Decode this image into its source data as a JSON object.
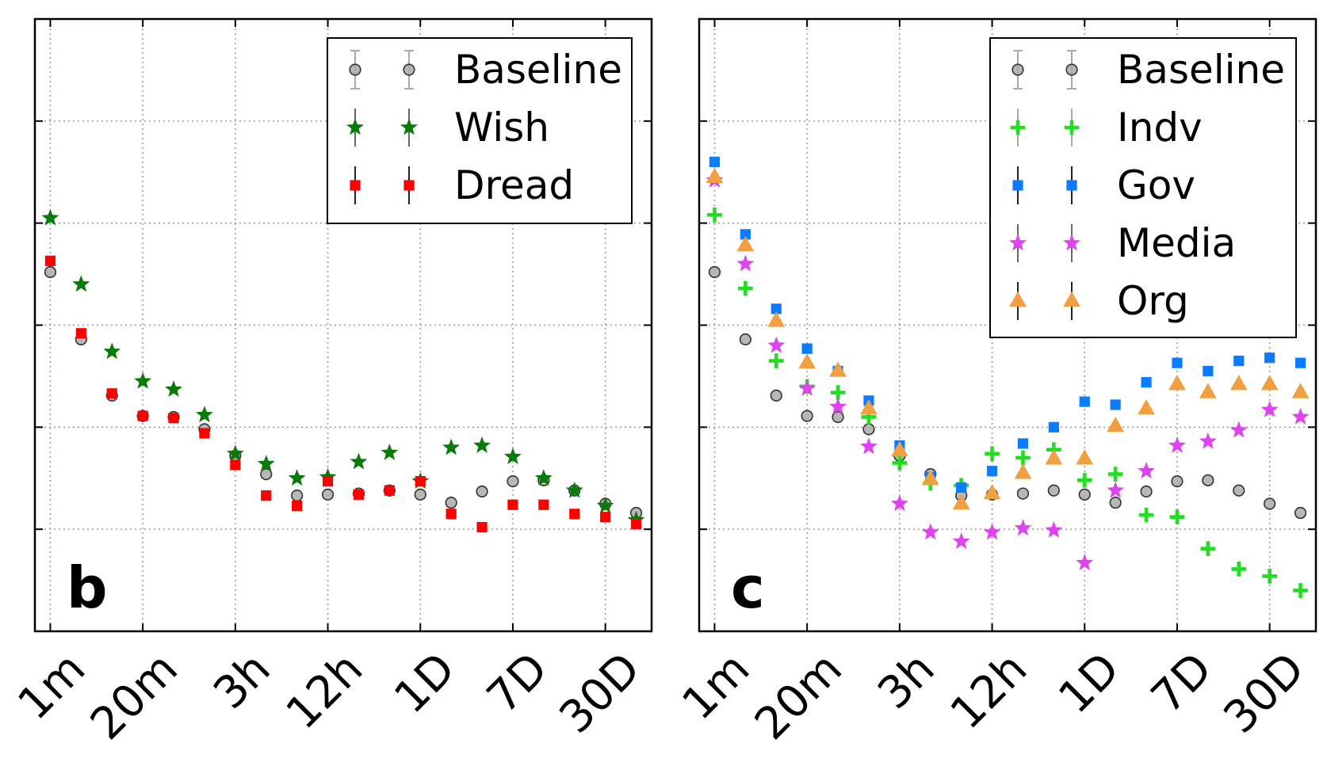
{
  "chart_data": [
    {
      "type": "scatter",
      "panel_label": "b",
      "x_tick_labels": [
        "1m",
        "20m",
        "3h",
        "12h",
        "1D",
        "7D",
        "30D"
      ],
      "x_tick_positions": [
        0,
        3,
        6,
        9,
        12,
        15,
        18
      ],
      "x_range": [
        -0.5,
        19.5
      ],
      "y_range": [
        0,
        6
      ],
      "grid": true,
      "legend_placement": "top-right",
      "series": [
        {
          "name": "Baseline",
          "marker": "circle",
          "color": "#aaaaaa",
          "x": [
            0,
            1,
            2,
            3,
            4,
            5,
            6,
            7,
            8,
            9,
            10,
            11,
            12,
            13,
            14,
            15,
            16,
            17,
            18,
            19
          ],
          "y": [
            3.52,
            2.86,
            2.31,
            2.11,
            2.1,
            1.98,
            1.72,
            1.54,
            1.33,
            1.34,
            1.35,
            1.38,
            1.34,
            1.26,
            1.37,
            1.47,
            1.48,
            1.38,
            1.25,
            1.16
          ]
        },
        {
          "name": "Wish",
          "marker": "star",
          "color": "#0a7a0a",
          "x": [
            0,
            1,
            2,
            3,
            4,
            5,
            6,
            7,
            8,
            9,
            10,
            11,
            12,
            13,
            14,
            15,
            16,
            17,
            18,
            19
          ],
          "y": [
            4.05,
            3.4,
            2.74,
            2.45,
            2.37,
            2.12,
            1.74,
            1.64,
            1.5,
            1.51,
            1.66,
            1.75,
            1.47,
            1.8,
            1.82,
            1.71,
            1.5,
            1.38,
            1.23,
            1.09
          ]
        },
        {
          "name": "Dread",
          "marker": "square",
          "color": "#ff0000",
          "x": [
            0,
            1,
            2,
            3,
            4,
            5,
            6,
            7,
            8,
            9,
            10,
            11,
            12,
            13,
            14,
            15,
            16,
            17,
            18,
            19
          ],
          "y": [
            3.63,
            2.92,
            2.33,
            2.11,
            2.09,
            1.94,
            1.63,
            1.33,
            1.23,
            1.47,
            1.34,
            1.38,
            1.47,
            1.15,
            1.02,
            1.24,
            1.24,
            1.15,
            1.12,
            1.05
          ]
        }
      ]
    },
    {
      "type": "scatter",
      "panel_label": "c",
      "x_tick_labels": [
        "1m",
        "20m",
        "3h",
        "12h",
        "1D",
        "7D",
        "30D"
      ],
      "x_tick_positions": [
        0,
        3,
        6,
        9,
        12,
        15,
        18
      ],
      "x_range": [
        -0.5,
        19.5
      ],
      "y_range": [
        0,
        6
      ],
      "grid": true,
      "legend_placement": "top-right",
      "series": [
        {
          "name": "Baseline",
          "marker": "circle",
          "color": "#aaaaaa",
          "x": [
            0,
            1,
            2,
            3,
            4,
            5,
            6,
            7,
            8,
            9,
            10,
            11,
            12,
            13,
            14,
            15,
            16,
            17,
            18,
            19
          ],
          "y": [
            3.52,
            2.86,
            2.31,
            2.11,
            2.1,
            1.98,
            1.72,
            1.54,
            1.33,
            1.34,
            1.35,
            1.38,
            1.34,
            1.26,
            1.37,
            1.47,
            1.48,
            1.38,
            1.25,
            1.16
          ]
        },
        {
          "name": "Indv",
          "marker": "plus",
          "color": "#22dd22",
          "x": [
            0,
            1,
            2,
            3,
            4,
            5,
            6,
            7,
            8,
            9,
            10,
            11,
            12,
            13,
            14,
            15,
            16,
            17,
            18,
            19
          ],
          "y": [
            4.08,
            3.36,
            2.65,
            2.4,
            2.34,
            2.1,
            1.65,
            1.45,
            1.43,
            1.74,
            1.7,
            1.78,
            1.48,
            1.54,
            1.14,
            1.12,
            0.81,
            0.61,
            0.54,
            0.4
          ]
        },
        {
          "name": "Gov",
          "marker": "square",
          "color": "#0a7cff",
          "x": [
            0,
            1,
            2,
            3,
            4,
            5,
            6,
            7,
            8,
            9,
            10,
            11,
            12,
            13,
            14,
            15,
            16,
            17,
            18,
            19
          ],
          "y": [
            4.6,
            3.89,
            3.16,
            2.77,
            2.55,
            2.26,
            1.82,
            1.51,
            1.41,
            1.57,
            1.84,
            2.0,
            2.25,
            2.22,
            2.44,
            2.63,
            2.55,
            2.65,
            2.68,
            2.63
          ]
        },
        {
          "name": "Media",
          "marker": "star",
          "color": "#dd44ee",
          "x": [
            0,
            1,
            2,
            3,
            4,
            5,
            6,
            7,
            8,
            9,
            10,
            11,
            12,
            13,
            14,
            15,
            16,
            17,
            18,
            19
          ],
          "y": [
            4.42,
            3.6,
            2.8,
            2.38,
            2.2,
            1.81,
            1.25,
            0.97,
            0.88,
            0.97,
            1.01,
            0.99,
            0.67,
            1.38,
            1.57,
            1.82,
            1.86,
            1.97,
            2.17,
            2.1
          ]
        },
        {
          "name": "Org",
          "marker": "triangle",
          "color": "#f0a040",
          "x": [
            0,
            1,
            2,
            3,
            4,
            5,
            6,
            7,
            8,
            9,
            10,
            11,
            12,
            13,
            14,
            15,
            16,
            17,
            18,
            19
          ],
          "y": [
            4.45,
            3.78,
            3.04,
            2.63,
            2.55,
            2.18,
            1.77,
            1.49,
            1.25,
            1.35,
            1.55,
            1.69,
            1.69,
            2.01,
            2.18,
            2.42,
            2.34,
            2.42,
            2.42,
            2.34
          ]
        }
      ]
    }
  ]
}
